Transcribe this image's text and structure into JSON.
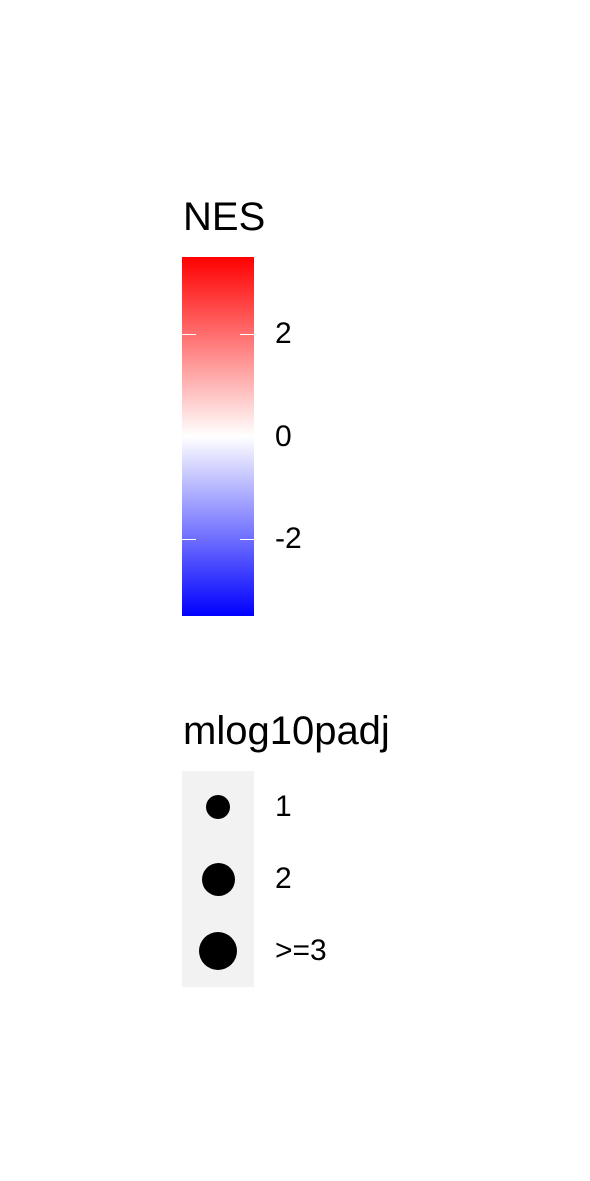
{
  "chart_data": {
    "type": "legend",
    "color_legend": {
      "title": "NES",
      "scale": {
        "min": -3.5,
        "max": 3.5,
        "colors": {
          "low": "#0000ff",
          "mid": "#ffffff",
          "high": "#ff0000"
        }
      },
      "ticks": [
        {
          "value": 2,
          "label": "2"
        },
        {
          "value": 0,
          "label": "0"
        },
        {
          "value": -2,
          "label": "-2"
        }
      ]
    },
    "size_legend": {
      "title": "mlog10padj",
      "items": [
        {
          "value": 1,
          "label": "1"
        },
        {
          "value": 2,
          "label": "2"
        },
        {
          "value": 3,
          "label": ">=3"
        }
      ],
      "dot_color": "#000000"
    }
  }
}
